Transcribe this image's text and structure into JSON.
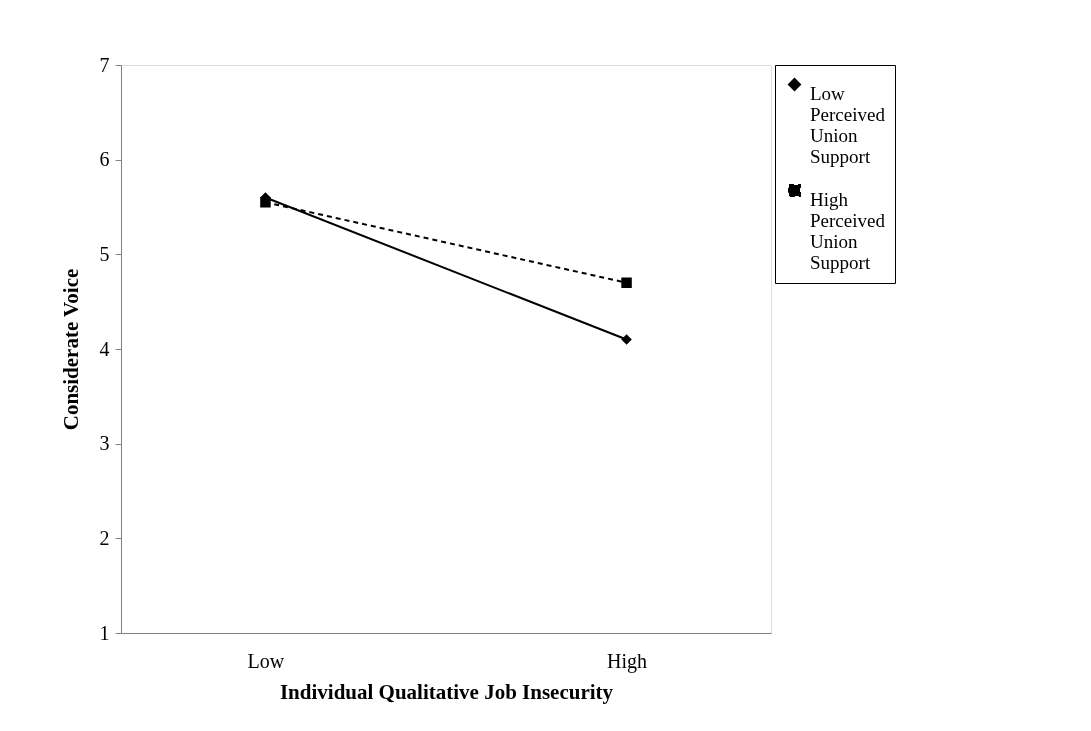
{
  "chart_data": {
    "type": "line",
    "xlabel": "Individual Qualitative Job Insecurity",
    "ylabel": "Considerate Voice",
    "categories": [
      "Low",
      "High"
    ],
    "series": [
      {
        "name": "Low Perceived Union Support",
        "color": "#000000",
        "values": [
          5.6,
          4.1
        ],
        "marker": "diamond",
        "line_style": "solid"
      },
      {
        "name": "High Perceived Union Support",
        "color": "#000000",
        "values": [
          5.55,
          4.7
        ],
        "marker": "square",
        "line_style": "dashed"
      }
    ],
    "ylim": [
      1,
      7
    ],
    "yticks": [
      1,
      2,
      3,
      4,
      5,
      6,
      7
    ],
    "grid": false,
    "legend": "right"
  }
}
